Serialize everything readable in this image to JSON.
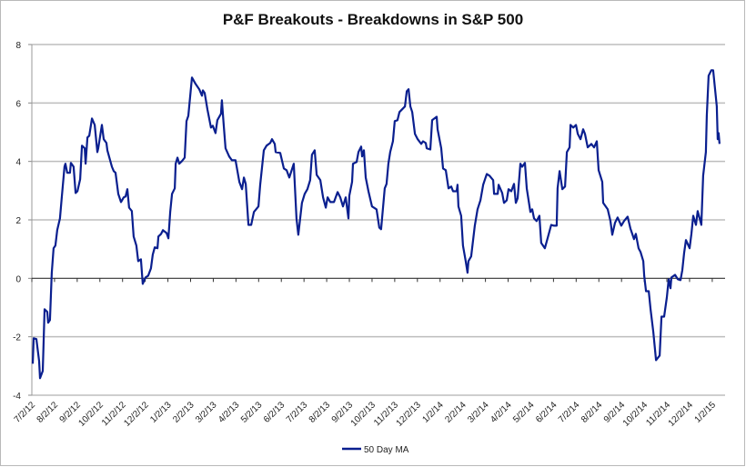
{
  "chart_data": {
    "type": "line",
    "title": "P&F Breakouts - Breakdowns in S&P 500",
    "xlabel": "",
    "ylabel": "",
    "ylim": [
      -4,
      8
    ],
    "yticks": [
      "-4",
      "-2",
      "0",
      "2",
      "4",
      "6",
      "8"
    ],
    "ytick_values": [
      -4,
      -2,
      0,
      2,
      4,
      6,
      8
    ],
    "xlim_months": [
      0,
      30.4
    ],
    "x_unit": "months since 7/2/12",
    "xtick_labels": [
      "7/2/12",
      "8/2/12",
      "9/2/12",
      "10/2/12",
      "11/2/12",
      "12/2/12",
      "1/2/13",
      "2/2/13",
      "3/2/13",
      "4/2/13",
      "5/2/13",
      "6/2/13",
      "7/2/13",
      "8/2/13",
      "9/2/13",
      "10/2/13",
      "11/2/13",
      "12/2/13",
      "1/2/14",
      "2/2/14",
      "3/2/14",
      "4/2/14",
      "5/2/14",
      "6/2/14",
      "7/2/14",
      "8/2/14",
      "9/2/14",
      "10/2/14",
      "11/2/14",
      "12/2/14",
      "1/2/15"
    ],
    "grid": true,
    "legend_position": "bottom",
    "series": [
      {
        "name": "50 Day MA",
        "color": "#0a1f8f",
        "points": [
          [
            0.04,
            -2.92
          ],
          [
            0.08,
            -2.05
          ],
          [
            0.2,
            -2.08
          ],
          [
            0.32,
            -2.83
          ],
          [
            0.36,
            -3.42
          ],
          [
            0.48,
            -3.17
          ],
          [
            0.56,
            -1.06
          ],
          [
            0.68,
            -1.15
          ],
          [
            0.72,
            -1.52
          ],
          [
            0.8,
            -1.43
          ],
          [
            0.88,
            0.19
          ],
          [
            0.96,
            1.03
          ],
          [
            1.04,
            1.12
          ],
          [
            1.12,
            1.65
          ],
          [
            1.24,
            2.05
          ],
          [
            1.32,
            2.77
          ],
          [
            1.44,
            3.82
          ],
          [
            1.48,
            3.92
          ],
          [
            1.56,
            3.61
          ],
          [
            1.68,
            3.61
          ],
          [
            1.72,
            3.95
          ],
          [
            1.84,
            3.82
          ],
          [
            1.93,
            2.92
          ],
          [
            2.01,
            2.98
          ],
          [
            2.13,
            3.39
          ],
          [
            2.21,
            4.54
          ],
          [
            2.33,
            4.45
          ],
          [
            2.37,
            3.92
          ],
          [
            2.45,
            4.82
          ],
          [
            2.53,
            4.88
          ],
          [
            2.65,
            5.47
          ],
          [
            2.77,
            5.25
          ],
          [
            2.89,
            4.32
          ],
          [
            2.93,
            4.45
          ],
          [
            3.09,
            5.25
          ],
          [
            3.17,
            4.76
          ],
          [
            3.29,
            4.63
          ],
          [
            3.33,
            4.38
          ],
          [
            3.53,
            3.82
          ],
          [
            3.61,
            3.67
          ],
          [
            3.69,
            3.61
          ],
          [
            3.81,
            2.89
          ],
          [
            3.93,
            2.61
          ],
          [
            4.05,
            2.77
          ],
          [
            4.13,
            2.8
          ],
          [
            4.21,
            3.05
          ],
          [
            4.29,
            2.42
          ],
          [
            4.41,
            2.3
          ],
          [
            4.49,
            1.43
          ],
          [
            4.61,
            1.12
          ],
          [
            4.69,
            0.59
          ],
          [
            4.81,
            0.65
          ],
          [
            4.89,
            -0.19
          ],
          [
            5.01,
            0.03
          ],
          [
            5.13,
            0.09
          ],
          [
            5.25,
            0.34
          ],
          [
            5.33,
            0.81
          ],
          [
            5.42,
            1.06
          ],
          [
            5.54,
            1.03
          ],
          [
            5.58,
            1.43
          ],
          [
            5.7,
            1.52
          ],
          [
            5.78,
            1.65
          ],
          [
            5.94,
            1.55
          ],
          [
            6.02,
            1.37
          ],
          [
            6.1,
            2.27
          ],
          [
            6.18,
            2.89
          ],
          [
            6.3,
            3.08
          ],
          [
            6.34,
            3.92
          ],
          [
            6.42,
            4.13
          ],
          [
            6.5,
            3.92
          ],
          [
            6.62,
            4.01
          ],
          [
            6.74,
            4.13
          ],
          [
            6.82,
            5.38
          ],
          [
            6.9,
            5.56
          ],
          [
            7.06,
            6.87
          ],
          [
            7.22,
            6.65
          ],
          [
            7.38,
            6.47
          ],
          [
            7.5,
            6.25
          ],
          [
            7.54,
            6.43
          ],
          [
            7.62,
            6.34
          ],
          [
            7.74,
            5.78
          ],
          [
            7.9,
            5.16
          ],
          [
            7.98,
            5.22
          ],
          [
            8.1,
            4.97
          ],
          [
            8.18,
            5.41
          ],
          [
            8.34,
            5.63
          ],
          [
            8.38,
            6.09
          ],
          [
            8.46,
            5.25
          ],
          [
            8.54,
            4.45
          ],
          [
            8.7,
            4.17
          ],
          [
            8.82,
            4.04
          ],
          [
            8.98,
            4.04
          ],
          [
            9.15,
            3.3
          ],
          [
            9.27,
            3.05
          ],
          [
            9.35,
            3.45
          ],
          [
            9.43,
            3.23
          ],
          [
            9.55,
            1.83
          ],
          [
            9.67,
            1.83
          ],
          [
            9.79,
            2.27
          ],
          [
            9.99,
            2.46
          ],
          [
            10.07,
            3.2
          ],
          [
            10.23,
            4.38
          ],
          [
            10.35,
            4.54
          ],
          [
            10.51,
            4.63
          ],
          [
            10.59,
            4.76
          ],
          [
            10.71,
            4.6
          ],
          [
            10.75,
            4.32
          ],
          [
            10.95,
            4.29
          ],
          [
            11.11,
            3.76
          ],
          [
            11.23,
            3.7
          ],
          [
            11.35,
            3.45
          ],
          [
            11.55,
            3.92
          ],
          [
            11.67,
            2.05
          ],
          [
            11.75,
            1.49
          ],
          [
            11.91,
            2.58
          ],
          [
            12.03,
            2.89
          ],
          [
            12.15,
            3.05
          ],
          [
            12.27,
            3.36
          ],
          [
            12.35,
            4.23
          ],
          [
            12.47,
            4.38
          ],
          [
            12.56,
            3.54
          ],
          [
            12.72,
            3.36
          ],
          [
            12.84,
            2.77
          ],
          [
            12.96,
            2.42
          ],
          [
            13.04,
            2.77
          ],
          [
            13.16,
            2.61
          ],
          [
            13.32,
            2.61
          ],
          [
            13.48,
            2.95
          ],
          [
            13.6,
            2.77
          ],
          [
            13.72,
            2.46
          ],
          [
            13.84,
            2.77
          ],
          [
            13.96,
            2.05
          ],
          [
            14.0,
            2.83
          ],
          [
            14.12,
            3.3
          ],
          [
            14.16,
            3.92
          ],
          [
            14.32,
            3.98
          ],
          [
            14.4,
            4.32
          ],
          [
            14.52,
            4.51
          ],
          [
            14.56,
            4.17
          ],
          [
            14.64,
            4.38
          ],
          [
            14.72,
            3.45
          ],
          [
            14.84,
            2.98
          ],
          [
            15.0,
            2.46
          ],
          [
            15.2,
            2.36
          ],
          [
            15.32,
            1.74
          ],
          [
            15.4,
            1.68
          ],
          [
            15.56,
            3.08
          ],
          [
            15.64,
            3.23
          ],
          [
            15.72,
            3.92
          ],
          [
            15.8,
            4.32
          ],
          [
            15.92,
            4.69
          ],
          [
            16.0,
            5.38
          ],
          [
            16.12,
            5.41
          ],
          [
            16.21,
            5.69
          ],
          [
            16.45,
            5.88
          ],
          [
            16.53,
            6.4
          ],
          [
            16.61,
            6.47
          ],
          [
            16.69,
            5.88
          ],
          [
            16.77,
            5.69
          ],
          [
            16.89,
            4.94
          ],
          [
            17.01,
            4.76
          ],
          [
            17.17,
            4.6
          ],
          [
            17.25,
            4.69
          ],
          [
            17.37,
            4.63
          ],
          [
            17.41,
            4.45
          ],
          [
            17.57,
            4.41
          ],
          [
            17.65,
            5.41
          ],
          [
            17.85,
            5.53
          ],
          [
            17.89,
            5.1
          ],
          [
            18.05,
            4.45
          ],
          [
            18.13,
            3.76
          ],
          [
            18.25,
            3.7
          ],
          [
            18.37,
            3.08
          ],
          [
            18.49,
            3.14
          ],
          [
            18.57,
            2.98
          ],
          [
            18.73,
            2.98
          ],
          [
            18.77,
            3.2
          ],
          [
            18.81,
            2.46
          ],
          [
            18.93,
            2.14
          ],
          [
            19.01,
            1.12
          ],
          [
            19.13,
            0.59
          ],
          [
            19.21,
            0.19
          ],
          [
            19.25,
            0.59
          ],
          [
            19.37,
            0.75
          ],
          [
            19.53,
            1.8
          ],
          [
            19.65,
            2.36
          ],
          [
            19.78,
            2.67
          ],
          [
            19.9,
            3.2
          ],
          [
            19.98,
            3.39
          ],
          [
            20.06,
            3.57
          ],
          [
            20.18,
            3.51
          ],
          [
            20.34,
            3.36
          ],
          [
            20.38,
            2.89
          ],
          [
            20.54,
            2.89
          ],
          [
            20.58,
            3.2
          ],
          [
            20.74,
            2.92
          ],
          [
            20.82,
            2.58
          ],
          [
            20.94,
            2.67
          ],
          [
            21.02,
            3.05
          ],
          [
            21.14,
            2.98
          ],
          [
            21.26,
            3.23
          ],
          [
            21.34,
            2.58
          ],
          [
            21.42,
            2.74
          ],
          [
            21.54,
            3.92
          ],
          [
            21.62,
            3.82
          ],
          [
            21.74,
            3.95
          ],
          [
            21.82,
            3.08
          ],
          [
            21.98,
            2.27
          ],
          [
            22.06,
            2.36
          ],
          [
            22.14,
            2.05
          ],
          [
            22.26,
            1.96
          ],
          [
            22.38,
            2.14
          ],
          [
            22.46,
            1.21
          ],
          [
            22.62,
            1.03
          ],
          [
            22.74,
            1.37
          ],
          [
            22.9,
            1.83
          ],
          [
            23.02,
            1.8
          ],
          [
            23.14,
            1.8
          ],
          [
            23.18,
            3.08
          ],
          [
            23.27,
            3.67
          ],
          [
            23.39,
            3.05
          ],
          [
            23.51,
            3.14
          ],
          [
            23.59,
            4.32
          ],
          [
            23.71,
            4.48
          ],
          [
            23.75,
            5.25
          ],
          [
            23.87,
            5.16
          ],
          [
            23.99,
            5.25
          ],
          [
            24.07,
            4.94
          ],
          [
            24.19,
            4.76
          ],
          [
            24.31,
            5.1
          ],
          [
            24.39,
            4.94
          ],
          [
            24.51,
            4.48
          ],
          [
            24.67,
            4.6
          ],
          [
            24.79,
            4.48
          ],
          [
            24.91,
            4.69
          ],
          [
            24.99,
            3.7
          ],
          [
            25.15,
            3.3
          ],
          [
            25.19,
            2.58
          ],
          [
            25.39,
            2.36
          ],
          [
            25.51,
            1.96
          ],
          [
            25.59,
            1.49
          ],
          [
            25.71,
            1.9
          ],
          [
            25.83,
            2.08
          ],
          [
            25.99,
            1.8
          ],
          [
            26.11,
            1.96
          ],
          [
            26.27,
            2.11
          ],
          [
            26.39,
            1.71
          ],
          [
            26.55,
            1.34
          ],
          [
            26.63,
            1.52
          ],
          [
            26.75,
            1.03
          ],
          [
            26.84,
            0.9
          ],
          [
            26.96,
            0.59
          ],
          [
            27.0,
            0.09
          ],
          [
            27.08,
            -0.44
          ],
          [
            27.2,
            -0.44
          ],
          [
            27.28,
            -1.06
          ],
          [
            27.4,
            -1.83
          ],
          [
            27.52,
            -2.8
          ],
          [
            27.68,
            -2.64
          ],
          [
            27.76,
            -1.31
          ],
          [
            27.88,
            -1.31
          ],
          [
            28.0,
            -0.65
          ],
          [
            28.08,
            -0.03
          ],
          [
            28.16,
            -0.34
          ],
          [
            28.2,
            0.03
          ],
          [
            28.36,
            0.12
          ],
          [
            28.48,
            -0.03
          ],
          [
            28.6,
            -0.06
          ],
          [
            28.68,
            0.28
          ],
          [
            28.76,
            0.87
          ],
          [
            28.84,
            1.31
          ],
          [
            29.0,
            1.03
          ],
          [
            29.08,
            1.52
          ],
          [
            29.16,
            2.14
          ],
          [
            29.28,
            1.83
          ],
          [
            29.36,
            2.3
          ],
          [
            29.52,
            1.83
          ],
          [
            29.6,
            3.51
          ],
          [
            29.72,
            4.32
          ],
          [
            29.76,
            5.56
          ],
          [
            29.84,
            6.93
          ],
          [
            29.96,
            7.12
          ],
          [
            30.04,
            7.12
          ],
          [
            30.2,
            5.88
          ],
          [
            30.24,
            4.76
          ],
          [
            30.28,
            4.97
          ],
          [
            30.32,
            4.6
          ]
        ]
      }
    ]
  }
}
